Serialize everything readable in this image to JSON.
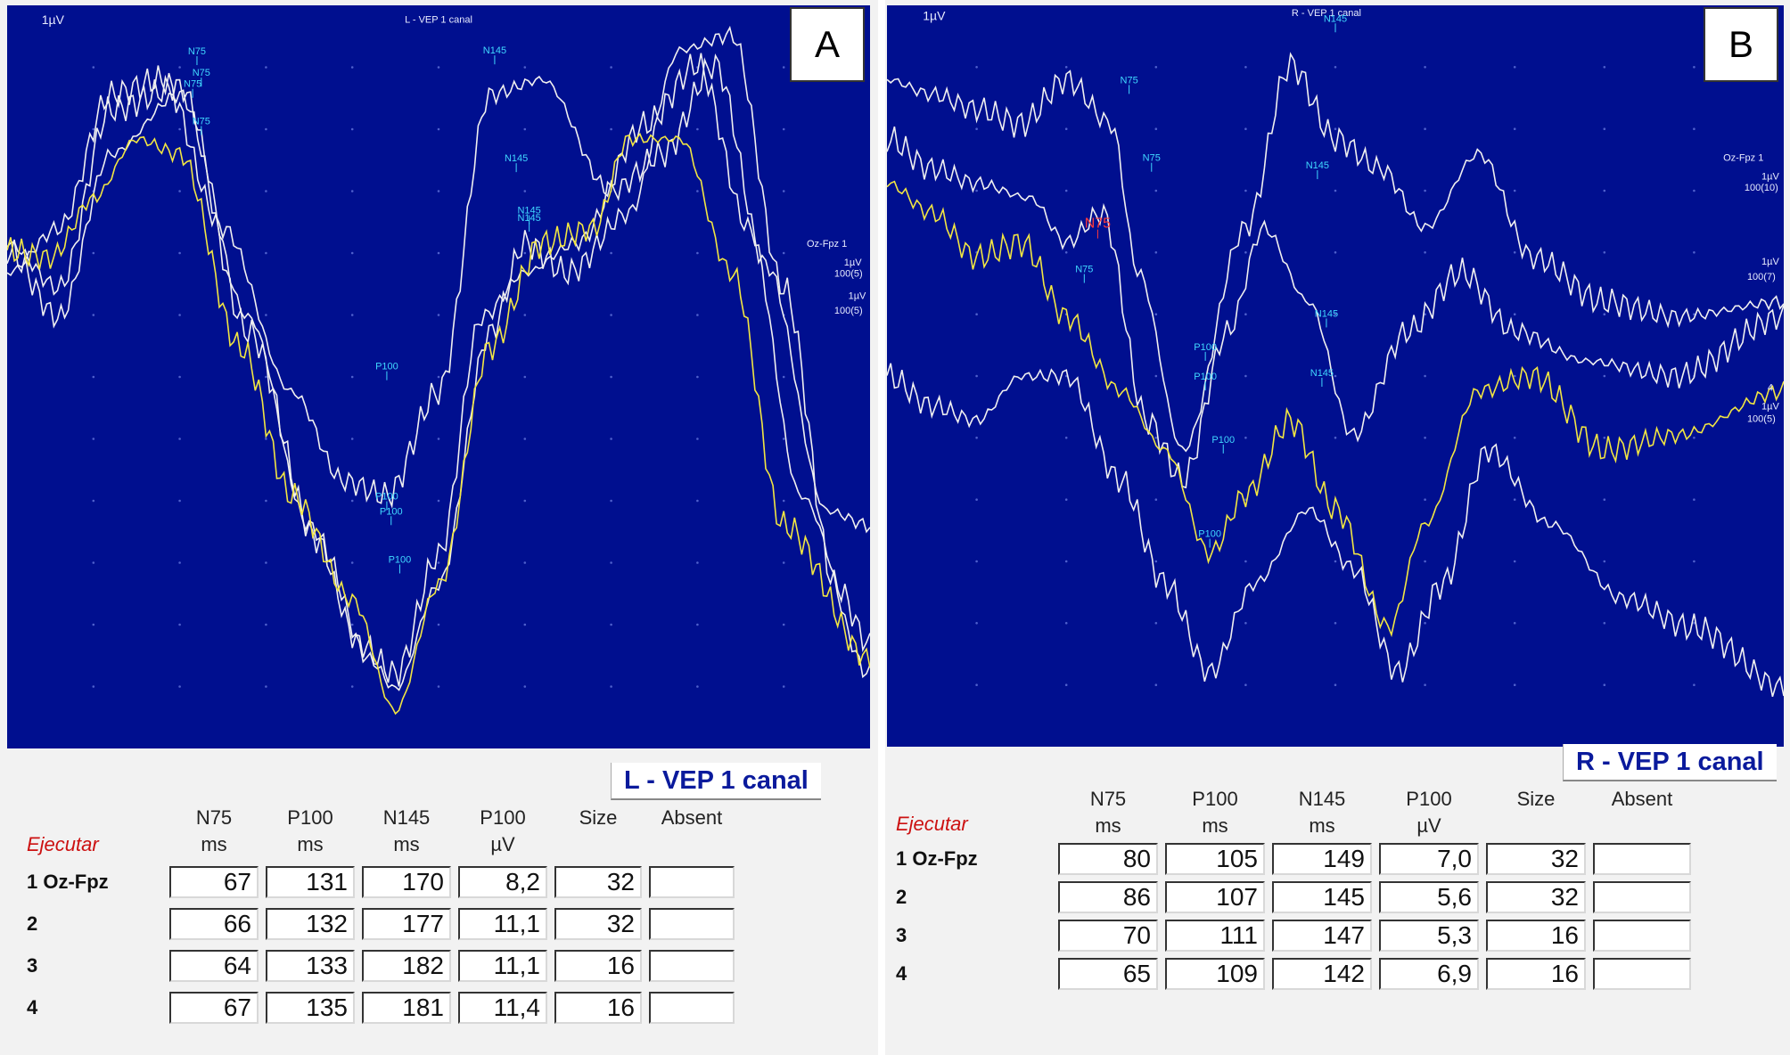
{
  "chart_data": [
    {
      "type": "line",
      "panel": "A",
      "title": "L - VEP 1 canal",
      "top_title": "L - VEP 1 canal",
      "scale_label": "1µV",
      "side_labels": [
        "Oz-Fpz 1",
        "1µV",
        "100(5)",
        "1µV",
        "100(5)"
      ],
      "peak_labels": [
        "N75",
        "N75",
        "N75",
        "N75",
        "N145",
        "N145",
        "N145",
        "N145",
        "P100",
        "P100",
        "P100",
        "P100"
      ],
      "series": [
        {
          "color": "#f0f0f0",
          "points": [
            [
              0,
              0.36
            ],
            [
              0.06,
              0.3
            ],
            [
              0.12,
              0.12
            ],
            [
              0.18,
              0.1
            ],
            [
              0.25,
              0.3
            ],
            [
              0.33,
              0.52
            ],
            [
              0.39,
              0.64
            ],
            [
              0.44,
              0.66
            ],
            [
              0.5,
              0.52
            ],
            [
              0.56,
              0.12
            ],
            [
              0.62,
              0.1
            ],
            [
              0.7,
              0.25
            ],
            [
              0.76,
              0.2
            ],
            [
              0.82,
              0.08
            ],
            [
              0.88,
              0.35
            ],
            [
              0.95,
              0.68
            ],
            [
              1,
              0.7
            ]
          ]
        },
        {
          "color": "#f0f0f0",
          "points": [
            [
              0,
              0.33
            ],
            [
              0.06,
              0.42
            ],
            [
              0.12,
              0.2
            ],
            [
              0.2,
              0.12
            ],
            [
              0.28,
              0.44
            ],
            [
              0.36,
              0.72
            ],
            [
              0.42,
              0.88
            ],
            [
              0.45,
              0.92
            ],
            [
              0.5,
              0.78
            ],
            [
              0.56,
              0.44
            ],
            [
              0.6,
              0.32
            ],
            [
              0.65,
              0.36
            ],
            [
              0.72,
              0.28
            ],
            [
              0.78,
              0.06
            ],
            [
              0.84,
              0.04
            ],
            [
              0.9,
              0.38
            ],
            [
              0.96,
              0.78
            ],
            [
              1,
              0.86
            ]
          ]
        },
        {
          "color": "#f0f0f0",
          "points": [
            [
              0,
              0.32
            ],
            [
              0.06,
              0.38
            ],
            [
              0.12,
              0.14
            ],
            [
              0.2,
              0.11
            ],
            [
              0.28,
              0.42
            ],
            [
              0.35,
              0.7
            ],
            [
              0.41,
              0.86
            ],
            [
              0.45,
              0.9
            ],
            [
              0.5,
              0.74
            ],
            [
              0.55,
              0.42
            ],
            [
              0.6,
              0.36
            ],
            [
              0.66,
              0.32
            ],
            [
              0.74,
              0.16
            ],
            [
              0.8,
              0.08
            ],
            [
              0.86,
              0.3
            ],
            [
              0.92,
              0.66
            ],
            [
              1,
              0.9
            ]
          ]
        },
        {
          "color": "#f2e642",
          "points": [
            [
              0,
              0.33
            ],
            [
              0.05,
              0.34
            ],
            [
              0.1,
              0.26
            ],
            [
              0.15,
              0.18
            ],
            [
              0.2,
              0.2
            ],
            [
              0.27,
              0.46
            ],
            [
              0.33,
              0.66
            ],
            [
              0.4,
              0.8
            ],
            [
              0.45,
              0.95
            ],
            [
              0.5,
              0.78
            ],
            [
              0.56,
              0.46
            ],
            [
              0.62,
              0.32
            ],
            [
              0.68,
              0.3
            ],
            [
              0.72,
              0.18
            ],
            [
              0.78,
              0.18
            ],
            [
              0.84,
              0.36
            ],
            [
              0.9,
              0.7
            ],
            [
              1,
              0.88
            ]
          ]
        }
      ]
    },
    {
      "type": "line",
      "panel": "B",
      "title": "R - VEP 1 canal",
      "top_title": "R - VEP 1 canal",
      "scale_label": "1µV",
      "side_labels": [
        "Oz-Fpz 1",
        "1µV",
        "100(10)",
        "1µV",
        "100(7)",
        "4",
        "1µV",
        "100(5)"
      ],
      "peak_labels": [
        "N145",
        "N75",
        "N75",
        "N75",
        "N75",
        "N145",
        "N145",
        "N145",
        "P100",
        "P100",
        "P100",
        "P100"
      ],
      "series": [
        {
          "color": "#f0f0f0",
          "points": [
            [
              0,
              0.1
            ],
            [
              0.05,
              0.12
            ],
            [
              0.1,
              0.14
            ],
            [
              0.15,
              0.16
            ],
            [
              0.2,
              0.1
            ],
            [
              0.25,
              0.16
            ],
            [
              0.28,
              0.36
            ],
            [
              0.33,
              0.6
            ],
            [
              0.4,
              0.3
            ],
            [
              0.45,
              0.08
            ],
            [
              0.5,
              0.18
            ],
            [
              0.55,
              0.22
            ],
            [
              0.6,
              0.3
            ],
            [
              0.66,
              0.2
            ],
            [
              0.72,
              0.34
            ],
            [
              0.8,
              0.4
            ],
            [
              0.88,
              0.42
            ],
            [
              1,
              0.4
            ]
          ]
        },
        {
          "color": "#f0f0f0",
          "points": [
            [
              0,
              0.18
            ],
            [
              0.05,
              0.22
            ],
            [
              0.1,
              0.24
            ],
            [
              0.16,
              0.26
            ],
            [
              0.2,
              0.32
            ],
            [
              0.24,
              0.28
            ],
            [
              0.29,
              0.56
            ],
            [
              0.33,
              0.64
            ],
            [
              0.38,
              0.44
            ],
            [
              0.42,
              0.3
            ],
            [
              0.47,
              0.4
            ],
            [
              0.52,
              0.58
            ],
            [
              0.58,
              0.44
            ],
            [
              0.64,
              0.36
            ],
            [
              0.7,
              0.44
            ],
            [
              0.78,
              0.48
            ],
            [
              0.88,
              0.5
            ],
            [
              1,
              0.42
            ]
          ]
        },
        {
          "color": "#f2e642",
          "points": [
            [
              0,
              0.24
            ],
            [
              0.05,
              0.28
            ],
            [
              0.1,
              0.34
            ],
            [
              0.15,
              0.32
            ],
            [
              0.2,
              0.42
            ],
            [
              0.26,
              0.52
            ],
            [
              0.31,
              0.6
            ],
            [
              0.36,
              0.74
            ],
            [
              0.4,
              0.66
            ],
            [
              0.45,
              0.56
            ],
            [
              0.5,
              0.68
            ],
            [
              0.56,
              0.84
            ],
            [
              0.6,
              0.7
            ],
            [
              0.66,
              0.52
            ],
            [
              0.72,
              0.5
            ],
            [
              0.8,
              0.6
            ],
            [
              0.88,
              0.58
            ],
            [
              1,
              0.52
            ]
          ]
        },
        {
          "color": "#f0f0f0",
          "points": [
            [
              0,
              0.5
            ],
            [
              0.05,
              0.54
            ],
            [
              0.1,
              0.56
            ],
            [
              0.15,
              0.5
            ],
            [
              0.2,
              0.5
            ],
            [
              0.26,
              0.64
            ],
            [
              0.31,
              0.78
            ],
            [
              0.36,
              0.9
            ],
            [
              0.41,
              0.78
            ],
            [
              0.47,
              0.68
            ],
            [
              0.52,
              0.76
            ],
            [
              0.57,
              0.9
            ],
            [
              0.62,
              0.78
            ],
            [
              0.67,
              0.6
            ],
            [
              0.74,
              0.7
            ],
            [
              0.82,
              0.8
            ],
            [
              0.9,
              0.84
            ],
            [
              1,
              0.92
            ]
          ]
        }
      ]
    }
  ],
  "panel_a": {
    "letter": "A",
    "ejecutar": "Ejecutar",
    "headers": [
      {
        "top": "N75",
        "bottom": "ms"
      },
      {
        "top": "P100",
        "bottom": "ms"
      },
      {
        "top": "N145",
        "bottom": "ms"
      },
      {
        "top": "P100",
        "bottom": "µV"
      },
      {
        "top": "Size",
        "bottom": ""
      },
      {
        "top": "Absent",
        "bottom": ""
      }
    ],
    "rows": [
      {
        "label": "1 Oz-Fpz",
        "values": [
          "67",
          "131",
          "170",
          "8,2",
          "32",
          ""
        ]
      },
      {
        "label": "2",
        "values": [
          "66",
          "132",
          "177",
          "11,1",
          "32",
          ""
        ]
      },
      {
        "label": "3",
        "values": [
          "64",
          "133",
          "182",
          "11,1",
          "16",
          ""
        ]
      },
      {
        "label": "4",
        "values": [
          "67",
          "135",
          "181",
          "11,4",
          "16",
          ""
        ]
      }
    ]
  },
  "panel_b": {
    "letter": "B",
    "ejecutar": "Ejecutar",
    "headers": [
      {
        "top": "N75",
        "bottom": "ms"
      },
      {
        "top": "P100",
        "bottom": "ms"
      },
      {
        "top": "N145",
        "bottom": "ms"
      },
      {
        "top": "P100",
        "bottom": "µV"
      },
      {
        "top": "Size",
        "bottom": ""
      },
      {
        "top": "Absent",
        "bottom": ""
      }
    ],
    "rows": [
      {
        "label": "1 Oz-Fpz",
        "values": [
          "80",
          "105",
          "149",
          "7,0",
          "32",
          ""
        ]
      },
      {
        "label": "2",
        "values": [
          "86",
          "107",
          "145",
          "5,6",
          "32",
          ""
        ]
      },
      {
        "label": "3",
        "values": [
          "70",
          "111",
          "147",
          "5,3",
          "16",
          ""
        ]
      },
      {
        "label": "4",
        "values": [
          "65",
          "109",
          "142",
          "6,9",
          "16",
          ""
        ]
      }
    ]
  }
}
